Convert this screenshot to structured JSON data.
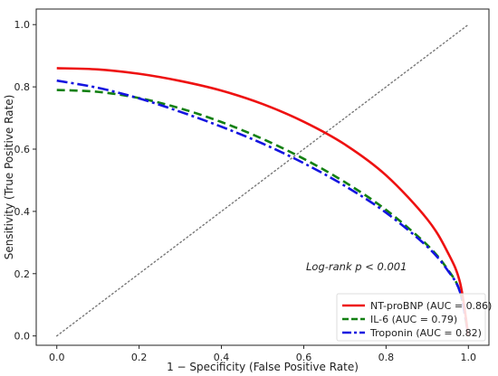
{
  "chart_data": {
    "type": "line",
    "title": "",
    "xlabel": "1 − Specificity (False Positive Rate)",
    "ylabel": "Sensitivity (True Positive Rate)",
    "xlim": [
      -0.05,
      1.05
    ],
    "ylim": [
      -0.03,
      1.05
    ],
    "xticks": [
      0.0,
      0.2,
      0.4,
      0.6,
      0.8,
      1.0
    ],
    "yticks": [
      0.0,
      0.2,
      0.4,
      0.6,
      0.8,
      1.0
    ],
    "xtick_labels": [
      "0.0",
      "0.2",
      "0.4",
      "0.6",
      "0.8",
      "1.0"
    ],
    "ytick_labels": [
      "0.0",
      "0.2",
      "0.4",
      "0.6",
      "0.8",
      "1.0"
    ],
    "grid": false,
    "legend_position": "bottom-right",
    "annotation": "Log-rank p < 0.001",
    "reference_line": {
      "x": [
        0,
        1
      ],
      "y": [
        0,
        1
      ],
      "style": "dotted",
      "color": "#777777"
    },
    "series": [
      {
        "name": "NT-proBNP (AUC = 0.86)",
        "color": "#ee1111",
        "style": "solid",
        "x": [
          0.0,
          0.1,
          0.2,
          0.3,
          0.4,
          0.5,
          0.6,
          0.7,
          0.8,
          0.9,
          0.95,
          0.98,
          1.0
        ],
        "y": [
          0.86,
          0.856,
          0.842,
          0.819,
          0.788,
          0.745,
          0.688,
          0.615,
          0.516,
          0.375,
          0.268,
          0.17,
          0.0
        ]
      },
      {
        "name": "IL-6 (AUC = 0.79)",
        "color": "#138013",
        "style": "dashed",
        "x": [
          0.0,
          0.1,
          0.2,
          0.3,
          0.4,
          0.5,
          0.6,
          0.7,
          0.8,
          0.9,
          0.95,
          0.98,
          1.0
        ],
        "y": [
          0.79,
          0.784,
          0.764,
          0.731,
          0.687,
          0.633,
          0.569,
          0.494,
          0.405,
          0.292,
          0.213,
          0.141,
          0.0
        ]
      },
      {
        "name": "Troponin (AUC = 0.82)",
        "color": "#1414e0",
        "style": "dashdot",
        "x": [
          0.0,
          0.1,
          0.2,
          0.3,
          0.4,
          0.5,
          0.6,
          0.7,
          0.8,
          0.9,
          0.95,
          0.98,
          1.0
        ],
        "y": [
          0.82,
          0.797,
          0.763,
          0.72,
          0.672,
          0.618,
          0.555,
          0.482,
          0.396,
          0.287,
          0.21,
          0.14,
          0.0
        ]
      }
    ]
  }
}
